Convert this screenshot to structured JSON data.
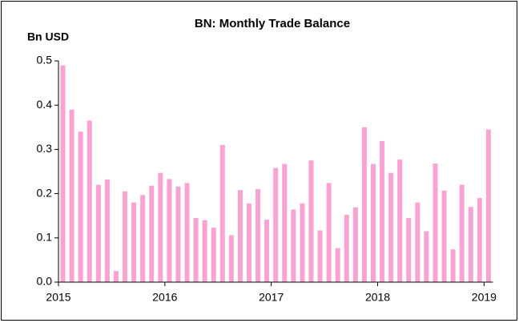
{
  "chart_data": {
    "type": "bar",
    "title": "BN: Monthly Trade Balance",
    "y_label": "Bn USD",
    "categories": [
      "2015",
      null,
      null,
      null,
      null,
      null,
      null,
      null,
      null,
      null,
      null,
      null,
      "2016",
      null,
      null,
      null,
      null,
      null,
      null,
      null,
      null,
      null,
      null,
      null,
      "2017",
      null,
      null,
      null,
      null,
      null,
      null,
      null,
      null,
      null,
      null,
      null,
      "2018",
      null,
      null,
      null,
      null,
      null,
      null,
      null,
      null,
      null,
      null,
      null,
      "2019"
    ],
    "values": [
      0.49,
      0.39,
      0.34,
      0.365,
      0.22,
      0.232,
      0.025,
      0.205,
      0.18,
      0.197,
      0.218,
      0.247,
      0.233,
      0.216,
      0.224,
      0.145,
      0.14,
      0.123,
      0.31,
      0.106,
      0.208,
      0.178,
      0.21,
      0.141,
      0.258,
      0.267,
      0.164,
      0.178,
      0.275,
      0.117,
      0.224,
      0.077,
      0.152,
      0.169,
      0.35,
      0.267,
      0.319,
      0.247,
      0.277,
      0.145,
      0.18,
      0.115,
      0.268,
      0.207,
      0.074,
      0.22,
      0.17,
      0.19,
      0.345
    ],
    "color": "#f9a3d2",
    "ylim": [
      0,
      0.5
    ],
    "yticks": [
      {
        "value": 0,
        "label": "0.0"
      },
      0.1,
      0.2,
      0.3,
      0.4,
      0.5
    ]
  }
}
